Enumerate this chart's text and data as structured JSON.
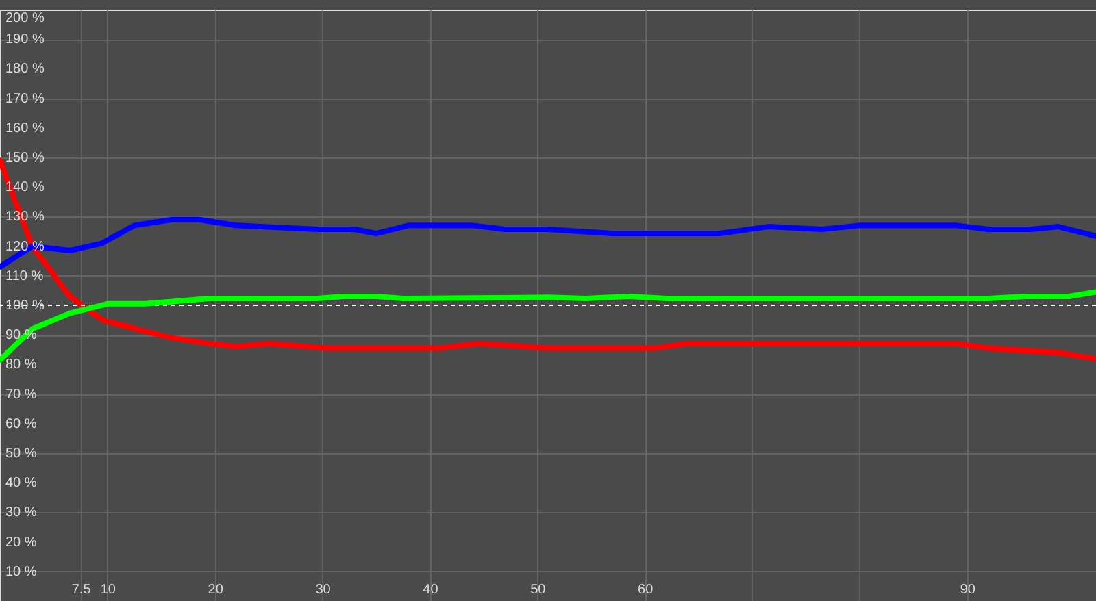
{
  "chart_data": {
    "type": "line",
    "xlim": [
      0,
      102
    ],
    "ylim": [
      0,
      200
    ],
    "xticks": [
      {
        "value": 7.5,
        "label": "7.5"
      },
      10,
      20,
      30,
      40,
      50,
      60,
      {
        "value": 70,
        "label": null
      },
      {
        "value": 80,
        "label": null
      },
      90
    ],
    "yticks": [
      {
        "value": 10,
        "label": "10 %"
      },
      {
        "value": 20,
        "label": "20 %"
      },
      {
        "value": 30,
        "label": "30 %"
      },
      {
        "value": 40,
        "label": "40 %"
      },
      {
        "value": 50,
        "label": "50 %"
      },
      {
        "value": 60,
        "label": "60 %"
      },
      {
        "value": 70,
        "label": "70 %"
      },
      {
        "value": 80,
        "label": "80 %"
      },
      {
        "value": 90,
        "label": "90 %"
      },
      {
        "value": 100,
        "label": "100 %"
      },
      {
        "value": 110,
        "label": "110 %"
      },
      {
        "value": 120,
        "label": "120 %"
      },
      {
        "value": 130,
        "label": "130 %"
      },
      {
        "value": 140,
        "label": "140 %"
      },
      {
        "value": 150,
        "label": "150 %"
      },
      {
        "value": 160,
        "label": "160 %"
      },
      {
        "value": 170,
        "label": "170 %"
      },
      {
        "value": 180,
        "label": "180 %"
      },
      {
        "value": 190,
        "label": "190 %"
      },
      {
        "value": 200,
        "label": "200 %"
      }
    ],
    "grid": true,
    "marker": "none",
    "line_style": "solid",
    "ref_lines": [
      {
        "axis": "y",
        "value": 100,
        "label": null,
        "color": "#ffffff",
        "line_style": "dashed"
      }
    ],
    "series": [
      {
        "color": "#ff0000",
        "x": [
          0,
          3,
          6.5,
          9.5,
          16,
          19.5,
          22,
          25,
          30.5,
          41,
          44.5,
          51,
          61,
          64,
          89,
          92,
          98.5,
          102
        ],
        "values": [
          149,
          120,
          103,
          95,
          89,
          87,
          86,
          87,
          85.5,
          85.5,
          87,
          85.5,
          85.5,
          87,
          87,
          85.5,
          84,
          82
        ]
      },
      {
        "color": "#00ff00",
        "x": [
          0,
          3,
          6.5,
          10,
          13.5,
          19.5,
          29.5,
          32,
          35,
          37.5,
          51,
          54.5,
          58.5,
          62,
          92,
          95.5,
          99.5,
          102
        ],
        "values": [
          81.5,
          92,
          97.3,
          100.5,
          100.5,
          102.3,
          102.3,
          103,
          103,
          102.3,
          102.7,
          102.3,
          103,
          102.3,
          102.3,
          103,
          103,
          104.5
        ]
      },
      {
        "color": "#0000ff",
        "x": [
          0,
          3,
          6.5,
          9.5,
          12.5,
          16,
          18.5,
          22,
          29.5,
          33,
          35,
          38,
          44,
          47,
          51,
          57,
          67,
          71.5,
          76.5,
          80,
          89,
          92,
          96,
          98.5,
          102
        ],
        "values": [
          113,
          120,
          118.5,
          121,
          127,
          129,
          129,
          127,
          125.7,
          125.7,
          124.3,
          127,
          127,
          125.7,
          125.7,
          124.3,
          124.3,
          126.6,
          125.7,
          127,
          127,
          125.7,
          125.7,
          126.6,
          123.4
        ]
      }
    ]
  }
}
